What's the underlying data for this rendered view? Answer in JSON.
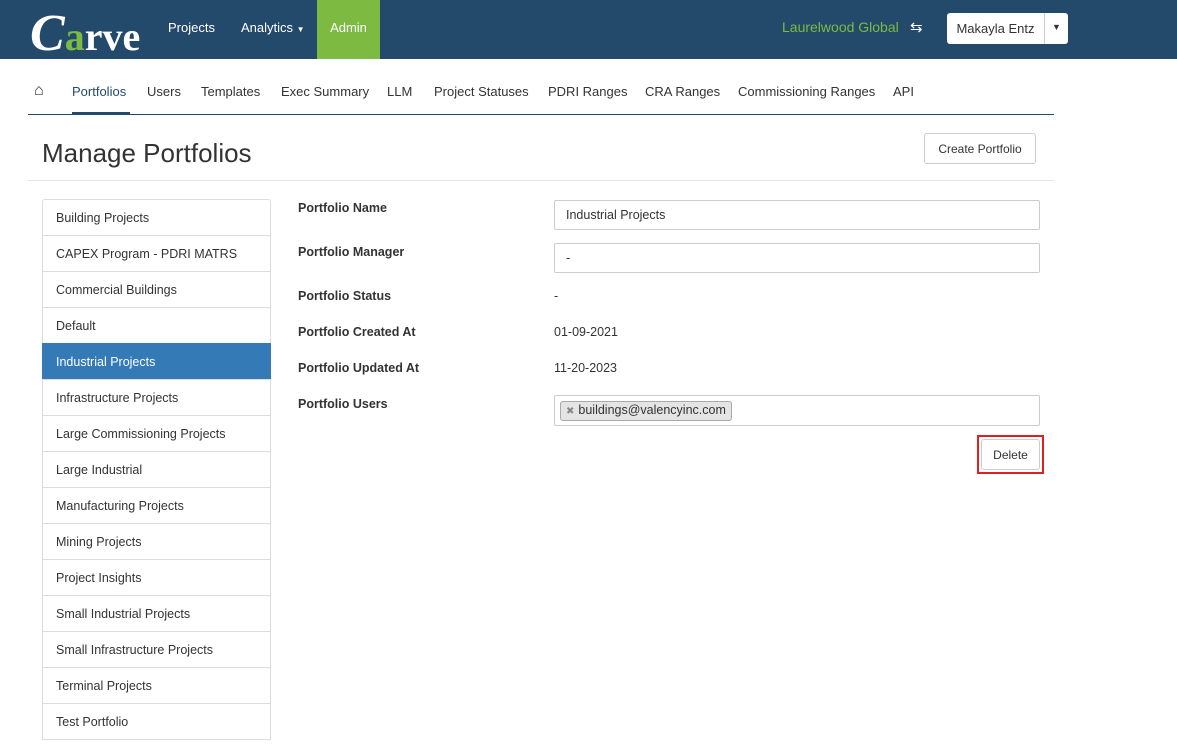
{
  "nav": {
    "logo": "Carve",
    "items": [
      "Projects",
      "Analytics",
      "Admin"
    ],
    "organization": "Laurelwood Global",
    "user": "Makayla Entz",
    "colors": {
      "nav_bg": "#244a6b",
      "accent": "#7dba42",
      "active": "#337ab7"
    }
  },
  "subnav": {
    "tabs": [
      "Portfolios",
      "Users",
      "Templates",
      "Exec Summary",
      "LLM",
      "Project Statuses",
      "PDRI Ranges",
      "CRA Ranges",
      "Commissioning Ranges",
      "API"
    ],
    "active": "Portfolios"
  },
  "page": {
    "title": "Manage Portfolios",
    "create_button": "Create Portfolio"
  },
  "portfolios": [
    "Building Projects",
    "CAPEX Program - PDRI MATRS",
    "Commercial Buildings",
    "Default",
    "Industrial Projects",
    "Infrastructure Projects",
    "Large Commissioning Projects",
    "Large Industrial",
    "Manufacturing Projects",
    "Mining Projects",
    "Project Insights",
    "Small Industrial Projects",
    "Small Infrastructure Projects",
    "Terminal Projects",
    "Test Portfolio"
  ],
  "selected_portfolio": "Industrial Projects",
  "form": {
    "name_label": "Portfolio Name",
    "name_value": "Industrial Projects",
    "manager_label": "Portfolio Manager",
    "manager_value": "-",
    "status_label": "Portfolio Status",
    "status_value": "-",
    "created_label": "Portfolio Created At",
    "created_value": "01-09-2021",
    "updated_label": "Portfolio Updated At",
    "updated_value": "11-20-2023",
    "users_label": "Portfolio Users",
    "users": [
      "buildings@valencyinc.com"
    ],
    "delete_button": "Delete"
  }
}
